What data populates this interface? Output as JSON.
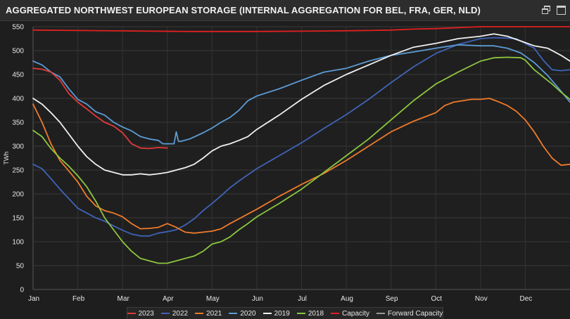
{
  "header": {
    "title": "AGGREGATED NORTHWEST EUROPEAN STORAGE (INTERNAL AGGREGATION FOR BEL, FRA, GER, NLD)"
  },
  "chart_data": {
    "type": "line",
    "title": "AGGREGATED NORTHWEST EUROPEAN STORAGE (INTERNAL AGGREGATION FOR BEL, FRA, GER, NLD)",
    "xlabel": "",
    "ylabel": "TWh",
    "xlim": [
      0,
      12
    ],
    "ylim": [
      0,
      550
    ],
    "yticks": [
      0,
      50,
      100,
      150,
      200,
      250,
      300,
      350,
      400,
      450,
      500,
      550
    ],
    "xtick_labels": [
      "Jan",
      "Feb",
      "Mar",
      "Apr",
      "May",
      "Jun",
      "Jul",
      "Aug",
      "Sep",
      "Oct",
      "Nov",
      "Dec"
    ],
    "grid": true,
    "legend_position": "bottom",
    "series": [
      {
        "name": "2023",
        "color": "#e03a3a",
        "x": [
          0,
          0.2,
          0.4,
          0.6,
          0.8,
          1.0,
          1.2,
          1.4,
          1.6,
          1.8,
          2.0,
          2.2,
          2.4,
          2.6,
          2.8,
          3.0
        ],
        "y": [
          463,
          461,
          455,
          438,
          410,
          392,
          378,
          363,
          350,
          342,
          328,
          305,
          296,
          295,
          297,
          296
        ]
      },
      {
        "name": "2022",
        "color": "#3f63b8",
        "x": [
          0,
          0.2,
          0.4,
          0.6,
          0.8,
          1.0,
          1.2,
          1.4,
          1.6,
          1.8,
          2.0,
          2.2,
          2.4,
          2.6,
          2.8,
          3.0,
          3.2,
          3.4,
          3.6,
          3.8,
          4.0,
          4.2,
          4.4,
          4.6,
          4.8,
          5.0,
          5.5,
          6.0,
          6.5,
          7.0,
          7.5,
          8.0,
          8.5,
          9.0,
          9.5,
          10.0,
          10.3,
          10.6,
          10.8,
          11.0,
          11.2,
          11.4,
          11.6,
          11.8,
          12.0
        ],
        "y": [
          262,
          253,
          232,
          210,
          190,
          170,
          160,
          150,
          143,
          133,
          124,
          116,
          112,
          112,
          118,
          121,
          125,
          135,
          148,
          165,
          180,
          196,
          213,
          227,
          240,
          253,
          280,
          307,
          337,
          366,
          398,
          433,
          466,
          494,
          513,
          525,
          527,
          526,
          525,
          515,
          505,
          480,
          460,
          458,
          460
        ]
      },
      {
        "name": "2021",
        "color": "#ef7a2a",
        "x": [
          0,
          0.2,
          0.4,
          0.6,
          0.8,
          1.0,
          1.2,
          1.4,
          1.6,
          1.8,
          2.0,
          2.2,
          2.4,
          2.6,
          2.8,
          3.0,
          3.2,
          3.4,
          3.6,
          3.8,
          4.0,
          4.2,
          4.4,
          4.6,
          4.8,
          5.0,
          5.5,
          6.0,
          6.5,
          7.0,
          7.5,
          8.0,
          8.5,
          9.0,
          9.2,
          9.4,
          9.6,
          9.8,
          10.0,
          10.2,
          10.4,
          10.6,
          10.8,
          11.0,
          11.2,
          11.4,
          11.6,
          11.8,
          12.0
        ],
        "y": [
          388,
          350,
          305,
          270,
          248,
          225,
          195,
          175,
          165,
          160,
          152,
          138,
          127,
          128,
          130,
          138,
          130,
          120,
          118,
          120,
          122,
          127,
          138,
          148,
          158,
          168,
          195,
          220,
          243,
          270,
          300,
          330,
          352,
          370,
          385,
          392,
          395,
          398,
          398,
          400,
          393,
          385,
          373,
          355,
          330,
          300,
          275,
          260,
          262
        ]
      },
      {
        "name": "2020",
        "color": "#5b9bd5",
        "x": [
          0,
          0.2,
          0.4,
          0.6,
          0.8,
          1.0,
          1.2,
          1.4,
          1.6,
          1.8,
          2.0,
          2.2,
          2.4,
          2.6,
          2.8,
          2.9,
          3.0,
          3.15,
          3.2,
          3.25,
          3.3,
          3.5,
          3.8,
          4.0,
          4.2,
          4.4,
          4.6,
          4.8,
          5.0,
          5.5,
          6.0,
          6.5,
          7.0,
          7.5,
          8.0,
          8.5,
          9.0,
          9.5,
          10.0,
          10.3,
          10.6,
          10.9,
          11.2,
          11.5,
          11.8,
          12.0
        ],
        "y": [
          478,
          470,
          455,
          445,
          420,
          398,
          388,
          372,
          365,
          350,
          340,
          332,
          320,
          315,
          312,
          305,
          305,
          305,
          330,
          310,
          310,
          315,
          328,
          338,
          350,
          360,
          375,
          395,
          405,
          420,
          438,
          455,
          463,
          478,
          490,
          497,
          505,
          512,
          510,
          510,
          505,
          495,
          475,
          448,
          415,
          392
        ]
      },
      {
        "name": "2019",
        "color": "#f0f0f0",
        "x": [
          0,
          0.2,
          0.4,
          0.6,
          0.8,
          1.0,
          1.2,
          1.4,
          1.6,
          1.8,
          2.0,
          2.2,
          2.4,
          2.6,
          2.8,
          3.0,
          3.2,
          3.4,
          3.6,
          3.8,
          4.0,
          4.2,
          4.4,
          4.6,
          4.8,
          5.0,
          5.5,
          6.0,
          6.5,
          7.0,
          7.5,
          8.0,
          8.5,
          9.0,
          9.5,
          10.0,
          10.3,
          10.6,
          10.9,
          11.2,
          11.5,
          11.8,
          12.0
        ],
        "y": [
          400,
          388,
          370,
          350,
          325,
          300,
          278,
          262,
          250,
          245,
          240,
          240,
          242,
          240,
          242,
          245,
          250,
          255,
          262,
          275,
          290,
          300,
          305,
          312,
          320,
          335,
          365,
          398,
          427,
          450,
          470,
          490,
          507,
          515,
          525,
          530,
          535,
          530,
          520,
          510,
          505,
          490,
          478
        ]
      },
      {
        "name": "2018",
        "color": "#8cc63e",
        "x": [
          0,
          0.2,
          0.4,
          0.6,
          0.8,
          1.0,
          1.2,
          1.4,
          1.6,
          1.8,
          2.0,
          2.2,
          2.4,
          2.6,
          2.8,
          3.0,
          3.2,
          3.4,
          3.6,
          3.8,
          4.0,
          4.2,
          4.4,
          4.6,
          4.8,
          5.0,
          5.5,
          6.0,
          6.5,
          7.0,
          7.5,
          8.0,
          8.5,
          9.0,
          9.5,
          10.0,
          10.3,
          10.6,
          10.9,
          11.0,
          11.2,
          11.4,
          11.6,
          11.8,
          12.0
        ],
        "y": [
          333,
          320,
          295,
          275,
          258,
          238,
          215,
          185,
          150,
          125,
          100,
          80,
          65,
          60,
          55,
          55,
          60,
          65,
          70,
          80,
          95,
          100,
          110,
          125,
          138,
          152,
          180,
          210,
          245,
          280,
          315,
          355,
          395,
          430,
          455,
          478,
          485,
          486,
          485,
          480,
          460,
          445,
          430,
          413,
          398
        ]
      },
      {
        "name": "Capacity",
        "color": "#e02020",
        "x": [
          0,
          3.5,
          5.0,
          6.5,
          7.5,
          8.0,
          8.5,
          9.0,
          9.5,
          10.0,
          11.0,
          12.0
        ],
        "y": [
          543,
          540,
          540,
          541,
          542,
          543,
          545,
          546,
          548,
          550,
          550,
          550
        ]
      },
      {
        "name": "Forward Capacity",
        "color": "#9a9a9a",
        "x": [],
        "y": []
      }
    ]
  }
}
